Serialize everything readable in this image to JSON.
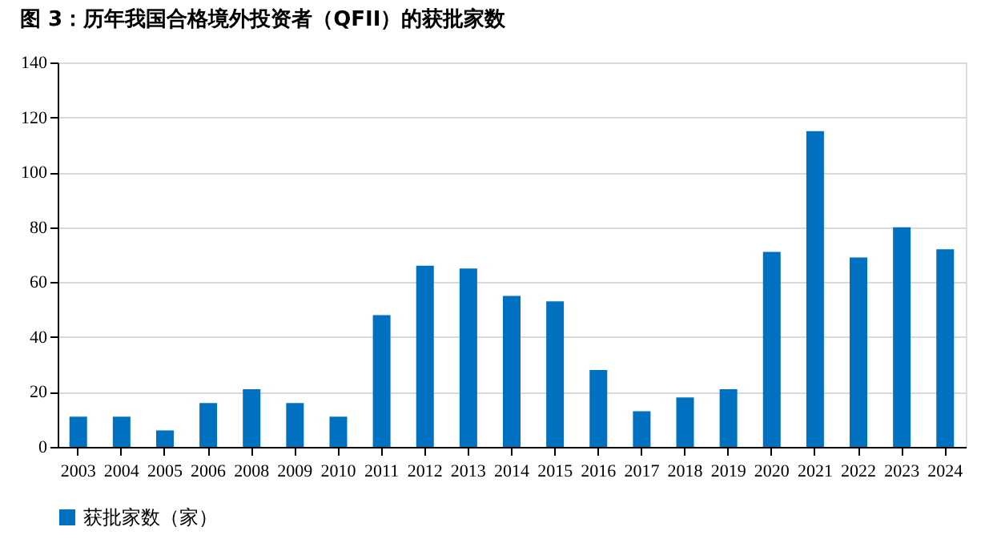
{
  "chart_data": {
    "type": "bar",
    "title": "图 3：历年我国合格境外投资者（QFII）的获批家数",
    "categories": [
      "2003",
      "2004",
      "2005",
      "2006",
      "2008",
      "2009",
      "2010",
      "2011",
      "2012",
      "2013",
      "2014",
      "2015",
      "2016",
      "2017",
      "2018",
      "2019",
      "2020",
      "2021",
      "2022",
      "2023",
      "2024"
    ],
    "series": [
      {
        "name": "获批家数（家）",
        "color": "#0070c0",
        "values": [
          11,
          11,
          6,
          16,
          21,
          16,
          11,
          48,
          66,
          65,
          55,
          53,
          28,
          13,
          18,
          21,
          71,
          115,
          69,
          80,
          72
        ]
      }
    ],
    "ylim": [
      0,
      140
    ],
    "yticks": [
      0,
      20,
      40,
      60,
      80,
      100,
      120,
      140
    ],
    "grid": "y",
    "legend": "bottom"
  }
}
